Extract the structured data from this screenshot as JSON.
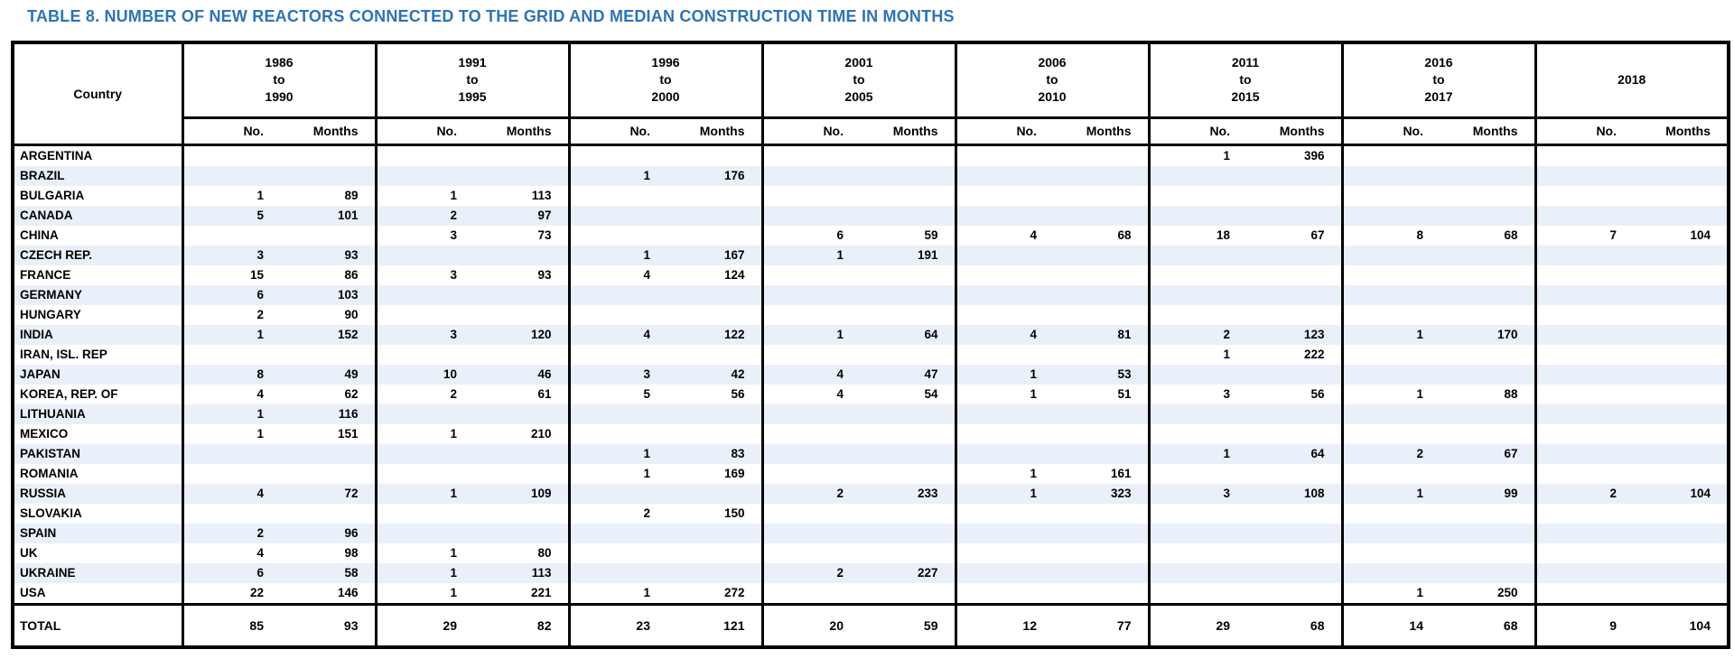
{
  "page_title": "TABLE 8. NUMBER OF NEW REACTORS CONNECTED TO THE GRID AND MEDIAN CONSTRUCTION TIME IN MONTHS",
  "colors": {
    "title_blue": "#2E74B5",
    "row_stripe": "#E9F0F9",
    "border": "#000000"
  },
  "table": {
    "country_header": "Country",
    "no_label": "No.",
    "months_label": "Months",
    "periods": [
      {
        "lines": [
          "1986",
          "to",
          "1990"
        ]
      },
      {
        "lines": [
          "1991",
          "to",
          "1995"
        ]
      },
      {
        "lines": [
          "1996",
          "to",
          "2000"
        ]
      },
      {
        "lines": [
          "2001",
          "to",
          "2005"
        ]
      },
      {
        "lines": [
          "2006",
          "to",
          "2010"
        ]
      },
      {
        "lines": [
          "2011",
          "to",
          "2015"
        ]
      },
      {
        "lines": [
          "2016",
          "to",
          "2017"
        ]
      },
      {
        "lines": [
          "2018"
        ]
      }
    ],
    "rows": [
      {
        "country": "ARGENTINA",
        "cells": [
          "",
          "",
          "",
          "",
          "",
          "",
          "",
          "",
          "",
          "",
          "1",
          "396",
          "",
          "",
          "",
          ""
        ]
      },
      {
        "country": "BRAZIL",
        "cells": [
          "",
          "",
          "",
          "",
          "1",
          "176",
          "",
          "",
          "",
          "",
          "",
          "",
          "",
          "",
          "",
          ""
        ]
      },
      {
        "country": "BULGARIA",
        "cells": [
          "1",
          "89",
          "1",
          "113",
          "",
          "",
          "",
          "",
          "",
          "",
          "",
          "",
          "",
          "",
          "",
          ""
        ]
      },
      {
        "country": "CANADA",
        "cells": [
          "5",
          "101",
          "2",
          "97",
          "",
          "",
          "",
          "",
          "",
          "",
          "",
          "",
          "",
          "",
          "",
          ""
        ]
      },
      {
        "country": "CHINA",
        "cells": [
          "",
          "",
          "3",
          "73",
          "",
          "",
          "6",
          "59",
          "4",
          "68",
          "18",
          "67",
          "8",
          "68",
          "7",
          "104"
        ]
      },
      {
        "country": "CZECH REP.",
        "cells": [
          "3",
          "93",
          "",
          "",
          "1",
          "167",
          "1",
          "191",
          "",
          "",
          "",
          "",
          "",
          "",
          "",
          ""
        ]
      },
      {
        "country": "FRANCE",
        "cells": [
          "15",
          "86",
          "3",
          "93",
          "4",
          "124",
          "",
          "",
          "",
          "",
          "",
          "",
          "",
          "",
          "",
          ""
        ]
      },
      {
        "country": "GERMANY",
        "cells": [
          "6",
          "103",
          "",
          "",
          "",
          "",
          "",
          "",
          "",
          "",
          "",
          "",
          "",
          "",
          "",
          ""
        ]
      },
      {
        "country": "HUNGARY",
        "cells": [
          "2",
          "90",
          "",
          "",
          "",
          "",
          "",
          "",
          "",
          "",
          "",
          "",
          "",
          "",
          "",
          ""
        ]
      },
      {
        "country": "INDIA",
        "cells": [
          "1",
          "152",
          "3",
          "120",
          "4",
          "122",
          "1",
          "64",
          "4",
          "81",
          "2",
          "123",
          "1",
          "170",
          "",
          ""
        ]
      },
      {
        "country": "IRAN, ISL. REP",
        "cells": [
          "",
          "",
          "",
          "",
          "",
          "",
          "",
          "",
          "",
          "",
          "1",
          "222",
          "",
          "",
          "",
          ""
        ]
      },
      {
        "country": "JAPAN",
        "cells": [
          "8",
          "49",
          "10",
          "46",
          "3",
          "42",
          "4",
          "47",
          "1",
          "53",
          "",
          "",
          "",
          "",
          "",
          ""
        ]
      },
      {
        "country": "KOREA, REP. OF",
        "cells": [
          "4",
          "62",
          "2",
          "61",
          "5",
          "56",
          "4",
          "54",
          "1",
          "51",
          "3",
          "56",
          "1",
          "88",
          "",
          ""
        ]
      },
      {
        "country": "LITHUANIA",
        "cells": [
          "1",
          "116",
          "",
          "",
          "",
          "",
          "",
          "",
          "",
          "",
          "",
          "",
          "",
          "",
          "",
          ""
        ]
      },
      {
        "country": "MEXICO",
        "cells": [
          "1",
          "151",
          "1",
          "210",
          "",
          "",
          "",
          "",
          "",
          "",
          "",
          "",
          "",
          "",
          "",
          ""
        ]
      },
      {
        "country": "PAKISTAN",
        "cells": [
          "",
          "",
          "",
          "",
          "1",
          "83",
          "",
          "",
          "",
          "",
          "1",
          "64",
          "2",
          "67",
          "",
          ""
        ]
      },
      {
        "country": "ROMANIA",
        "cells": [
          "",
          "",
          "",
          "",
          "1",
          "169",
          "",
          "",
          "1",
          "161",
          "",
          "",
          "",
          "",
          "",
          ""
        ]
      },
      {
        "country": "RUSSIA",
        "cells": [
          "4",
          "72",
          "1",
          "109",
          "",
          "",
          "2",
          "233",
          "1",
          "323",
          "3",
          "108",
          "1",
          "99",
          "2",
          "104"
        ]
      },
      {
        "country": "SLOVAKIA",
        "cells": [
          "",
          "",
          "",
          "",
          "2",
          "150",
          "",
          "",
          "",
          "",
          "",
          "",
          "",
          "",
          "",
          ""
        ]
      },
      {
        "country": "SPAIN",
        "cells": [
          "2",
          "96",
          "",
          "",
          "",
          "",
          "",
          "",
          "",
          "",
          "",
          "",
          "",
          "",
          "",
          ""
        ]
      },
      {
        "country": "UK",
        "cells": [
          "4",
          "98",
          "1",
          "80",
          "",
          "",
          "",
          "",
          "",
          "",
          "",
          "",
          "",
          "",
          "",
          ""
        ]
      },
      {
        "country": "UKRAINE",
        "cells": [
          "6",
          "58",
          "1",
          "113",
          "",
          "",
          "2",
          "227",
          "",
          "",
          "",
          "",
          "",
          "",
          "",
          ""
        ]
      },
      {
        "country": "USA",
        "cells": [
          "22",
          "146",
          "1",
          "221",
          "1",
          "272",
          "",
          "",
          "",
          "",
          "",
          "",
          "1",
          "250",
          "",
          ""
        ]
      }
    ],
    "total_row": {
      "label": "TOTAL",
      "cells": [
        "85",
        "93",
        "29",
        "82",
        "23",
        "121",
        "20",
        "59",
        "12",
        "77",
        "29",
        "68",
        "14",
        "68",
        "9",
        "104"
      ]
    }
  }
}
